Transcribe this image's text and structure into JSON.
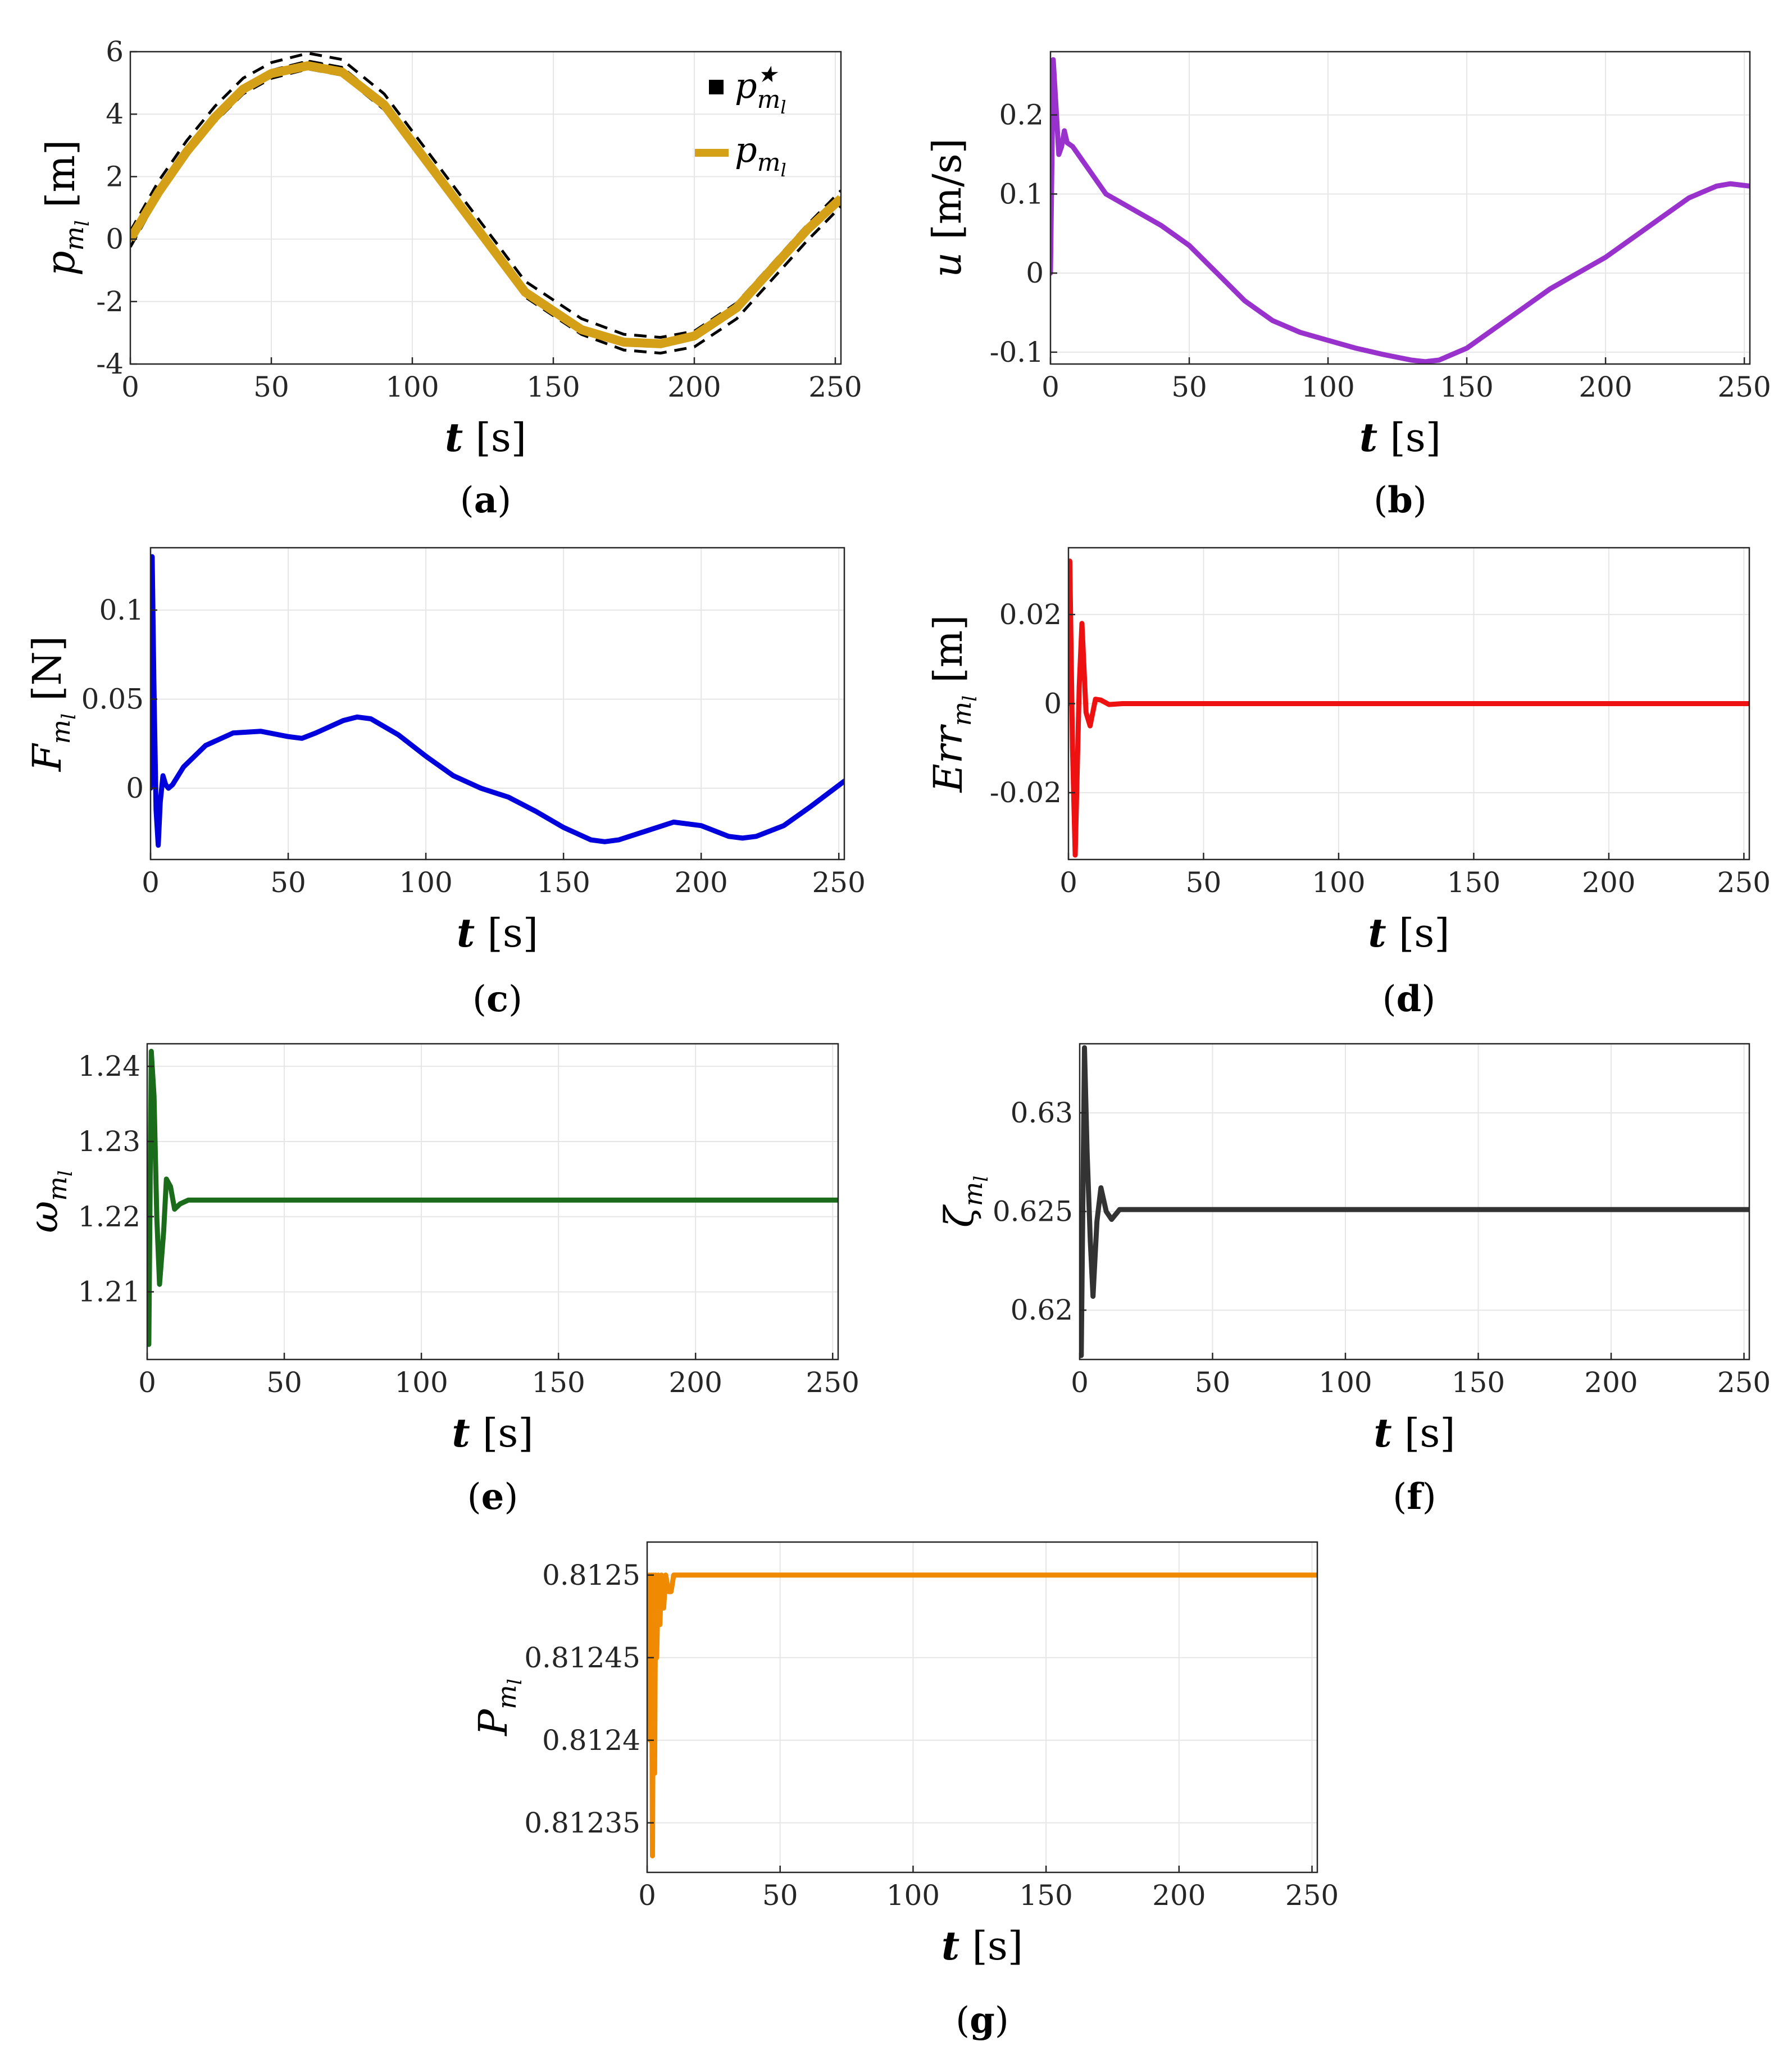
{
  "chart_data": [
    {
      "id": "a",
      "type": "line",
      "caption_label": "a",
      "ylabel": "p_ml [m]",
      "ylabel_parts": {
        "sym": "p",
        "sub": "m",
        "subsub": "l",
        "unit": " [m]"
      },
      "xlabel": "t [s]",
      "xlim": [
        0,
        252
      ],
      "ylim": [
        -4,
        6
      ],
      "xticks": [
        0,
        50,
        100,
        150,
        200,
        250
      ],
      "xtick_labels": [
        "0",
        "50",
        "100",
        "150",
        "200",
        "250"
      ],
      "yticks": [
        -4,
        -2,
        0,
        2,
        4,
        6
      ],
      "ytick_labels": [
        "-4",
        "-2",
        "0",
        "2",
        "4",
        "6"
      ],
      "grid": true,
      "legend": {
        "position": "top-right",
        "entries": [
          "p*_ml",
          "p_ml"
        ]
      },
      "series": [
        {
          "name": "p*_ml",
          "color": "#000000",
          "style": "dashed",
          "x": [
            0,
            10,
            20,
            30,
            40,
            50,
            63,
            75,
            90,
            100,
            110,
            125,
            140,
            160,
            175,
            188,
            200,
            215,
            230,
            240,
            252
          ],
          "y": [
            0.0,
            1.6,
            2.9,
            4.0,
            4.9,
            5.4,
            5.7,
            5.5,
            4.4,
            3.2,
            2.0,
            0.2,
            -1.6,
            -2.8,
            -3.3,
            -3.4,
            -3.2,
            -2.3,
            -0.8,
            0.2,
            1.3
          ]
        },
        {
          "name": "p_ml",
          "color": "#D4A017",
          "style": "solid",
          "x": [
            0,
            10,
            20,
            30,
            40,
            50,
            63,
            75,
            90,
            100,
            110,
            125,
            140,
            160,
            175,
            188,
            200,
            215,
            230,
            240,
            252
          ],
          "y": [
            0.0,
            1.5,
            2.8,
            3.9,
            4.8,
            5.3,
            5.55,
            5.35,
            4.3,
            3.1,
            1.9,
            0.1,
            -1.7,
            -2.9,
            -3.3,
            -3.35,
            -3.1,
            -2.2,
            -0.7,
            0.3,
            1.3
          ]
        }
      ]
    },
    {
      "id": "b",
      "type": "line",
      "caption_label": "b",
      "ylabel": "u [m/s]",
      "ylabel_parts": {
        "sym": "u",
        "sub": "",
        "subsub": "",
        "unit": " [m/s]"
      },
      "xlabel": "t [s]",
      "xlim": [
        0,
        252
      ],
      "ylim": [
        -0.115,
        0.28
      ],
      "xticks": [
        0,
        50,
        100,
        150,
        200,
        250
      ],
      "xtick_labels": [
        "0",
        "50",
        "100",
        "150",
        "200",
        "250"
      ],
      "yticks": [
        -0.1,
        0,
        0.1,
        0.2
      ],
      "ytick_labels": [
        "-0.1",
        "0",
        "0.1",
        "0.2"
      ],
      "grid": true,
      "series": [
        {
          "name": "u",
          "color": "#9932CC",
          "style": "solid",
          "x": [
            0,
            1,
            2,
            3,
            4,
            5,
            6,
            8,
            10,
            15,
            20,
            30,
            40,
            50,
            60,
            70,
            80,
            90,
            100,
            110,
            120,
            130,
            135,
            140,
            150,
            160,
            170,
            180,
            190,
            200,
            210,
            220,
            230,
            240,
            245,
            252
          ],
          "y": [
            0.0,
            0.27,
            0.21,
            0.15,
            0.16,
            0.18,
            0.165,
            0.16,
            0.15,
            0.125,
            0.1,
            0.08,
            0.06,
            0.035,
            0.0,
            -0.035,
            -0.06,
            -0.075,
            -0.085,
            -0.095,
            -0.103,
            -0.11,
            -0.112,
            -0.11,
            -0.095,
            -0.07,
            -0.045,
            -0.02,
            0.0,
            0.02,
            0.045,
            0.07,
            0.095,
            0.11,
            0.113,
            0.11
          ]
        }
      ]
    },
    {
      "id": "c",
      "type": "line",
      "caption_label": "c",
      "ylabel": "F_ml [N]",
      "ylabel_parts": {
        "sym": "F",
        "sub": "m",
        "subsub": "l",
        "unit": " [N]"
      },
      "xlabel": "t [s]",
      "xlim": [
        0,
        252
      ],
      "ylim": [
        -0.04,
        0.135
      ],
      "xticks": [
        0,
        50,
        100,
        150,
        200,
        250
      ],
      "xtick_labels": [
        "0",
        "50",
        "100",
        "150",
        "200",
        "250"
      ],
      "yticks": [
        0,
        0.05,
        0.1
      ],
      "ytick_labels": [
        "0",
        "0.05",
        "0.1"
      ],
      "grid": true,
      "series": [
        {
          "name": "F_ml",
          "color": "#0000DD",
          "style": "solid",
          "x": [
            0,
            0.6,
            1.2,
            2,
            2.8,
            3.5,
            4.5,
            5.5,
            6.5,
            8,
            12,
            20,
            30,
            40,
            50,
            55,
            60,
            70,
            75,
            80,
            90,
            100,
            110,
            120,
            130,
            140,
            150,
            160,
            165,
            170,
            180,
            190,
            200,
            210,
            215,
            220,
            230,
            240,
            252
          ],
          "y": [
            0.0,
            0.13,
            0.06,
            -0.012,
            -0.032,
            -0.008,
            0.007,
            0.002,
            0.0,
            0.002,
            0.012,
            0.024,
            0.031,
            0.032,
            0.029,
            0.028,
            0.031,
            0.038,
            0.04,
            0.039,
            0.03,
            0.018,
            0.007,
            0.0,
            -0.005,
            -0.013,
            -0.022,
            -0.029,
            -0.03,
            -0.029,
            -0.024,
            -0.019,
            -0.021,
            -0.027,
            -0.028,
            -0.027,
            -0.021,
            -0.01,
            0.004
          ]
        }
      ]
    },
    {
      "id": "d",
      "type": "line",
      "caption_label": "d",
      "ylabel": "Err_ml [m]",
      "ylabel_parts": {
        "sym": "Err",
        "sub": "m",
        "subsub": "l",
        "unit": " [m]"
      },
      "xlabel": "t [s]",
      "xlim": [
        0,
        252
      ],
      "ylim": [
        -0.035,
        0.035
      ],
      "xticks": [
        0,
        50,
        100,
        150,
        200,
        250
      ],
      "xtick_labels": [
        "0",
        "50",
        "100",
        "150",
        "200",
        "250"
      ],
      "yticks": [
        -0.02,
        0,
        0.02
      ],
      "ytick_labels": [
        "-0.02",
        "0",
        "0.02"
      ],
      "grid": true,
      "series": [
        {
          "name": "Err_ml",
          "color": "#EE1111",
          "style": "solid",
          "x": [
            0,
            0.5,
            1.5,
            2.5,
            4,
            5,
            6.5,
            8,
            10,
            12,
            15,
            20,
            252
          ],
          "y": [
            0.0,
            0.032,
            -0.01,
            -0.034,
            0.004,
            0.018,
            -0.002,
            -0.005,
            0.001,
            0.0008,
            -0.0002,
            0.0,
            0.0
          ]
        }
      ]
    },
    {
      "id": "e",
      "type": "line",
      "caption_label": "e",
      "ylabel": "omega_ml",
      "ylabel_parts": {
        "sym": "ω",
        "sub": "m",
        "subsub": "l",
        "unit": ""
      },
      "xlabel": "t [s]",
      "xlim": [
        0,
        252
      ],
      "ylim": [
        1.201,
        1.243
      ],
      "xticks": [
        0,
        50,
        100,
        150,
        200,
        250
      ],
      "xtick_labels": [
        "0",
        "50",
        "100",
        "150",
        "200",
        "250"
      ],
      "yticks": [
        1.21,
        1.22,
        1.23,
        1.24
      ],
      "ytick_labels": [
        "1.21",
        "1.22",
        "1.23",
        "1.24"
      ],
      "grid": true,
      "series": [
        {
          "name": "omega_ml",
          "color": "#1A6B1A",
          "style": "solid",
          "x": [
            0,
            0.6,
            1.5,
            2.5,
            3.5,
            4.5,
            6,
            7,
            8.5,
            10,
            12,
            15,
            252
          ],
          "y": [
            1.222,
            1.203,
            1.242,
            1.236,
            1.22,
            1.211,
            1.218,
            1.225,
            1.224,
            1.221,
            1.2217,
            1.2222,
            1.2222
          ]
        }
      ]
    },
    {
      "id": "f",
      "type": "line",
      "caption_label": "f",
      "ylabel": "zeta_ml",
      "ylabel_parts": {
        "sym": "ζ",
        "sub": "m",
        "subsub": "l",
        "unit": ""
      },
      "xlabel": "t [s]",
      "xlim": [
        0,
        252
      ],
      "ylim": [
        0.6175,
        0.6335
      ],
      "xticks": [
        0,
        50,
        100,
        150,
        200,
        250
      ],
      "xtick_labels": [
        "0",
        "50",
        "100",
        "150",
        "200",
        "250"
      ],
      "yticks": [
        0.62,
        0.625,
        0.63
      ],
      "ytick_labels": [
        "0.62",
        "0.625",
        "0.63"
      ],
      "grid": true,
      "series": [
        {
          "name": "zeta_ml",
          "color": "#333333",
          "style": "solid",
          "x": [
            0,
            0.6,
            1.8,
            2.8,
            4,
            5,
            6.5,
            8,
            10,
            12,
            15,
            252
          ],
          "y": [
            0.625,
            0.6177,
            0.6333,
            0.628,
            0.6235,
            0.6207,
            0.6245,
            0.6262,
            0.625,
            0.6246,
            0.6251,
            0.6251
          ]
        }
      ]
    },
    {
      "id": "g",
      "type": "line",
      "caption_label": "g",
      "ylabel": "P_ml",
      "ylabel_parts": {
        "sym": "P",
        "sub": "m",
        "subsub": "l",
        "unit": ""
      },
      "xlabel": "t [s]",
      "xlim": [
        0,
        252
      ],
      "ylim": [
        0.81232,
        0.81252
      ],
      "xticks": [
        0,
        50,
        100,
        150,
        200,
        250
      ],
      "xtick_labels": [
        "0",
        "50",
        "100",
        "150",
        "200",
        "250"
      ],
      "yticks": [
        0.81235,
        0.8124,
        0.81245,
        0.8125
      ],
      "ytick_labels": [
        "0.81235",
        "0.8124",
        "0.81245",
        "0.8125"
      ],
      "grid": true,
      "series": [
        {
          "name": "P_ml",
          "color": "#F08A00",
          "style": "solid",
          "x": [
            0,
            0.4,
            0.8,
            1.2,
            1.6,
            2.0,
            2.4,
            2.8,
            3.2,
            3.6,
            4.2,
            4.8,
            5.4,
            6.2,
            7,
            8,
            9,
            10,
            12,
            15,
            252
          ],
          "y": [
            0.8125,
            0.81246,
            0.8125,
            0.8124,
            0.8125,
            0.81233,
            0.8125,
            0.81238,
            0.8125,
            0.81245,
            0.8125,
            0.81247,
            0.8125,
            0.81248,
            0.8125,
            0.81249,
            0.81249,
            0.8125,
            0.8125,
            0.8125,
            0.8125
          ]
        }
      ]
    }
  ]
}
